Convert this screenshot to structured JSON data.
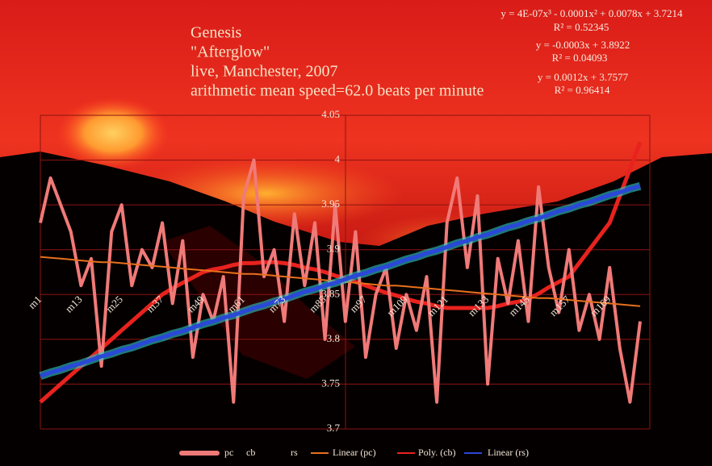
{
  "chart_data": {
    "type": "line",
    "title": [
      "Genesis",
      "\"Afterglow\"",
      "live, Manchester, 2007",
      "arithmetic mean speed=62.0 beats per minute"
    ],
    "categories": [
      "m1",
      null,
      null,
      null,
      "m13",
      null,
      null,
      null,
      "m25",
      null,
      null,
      null,
      "m37",
      null,
      null,
      null,
      "m49",
      null,
      null,
      null,
      "m61",
      null,
      null,
      null,
      "m73",
      null,
      null,
      null,
      "m85",
      null,
      null,
      null,
      "m97",
      null,
      null,
      null,
      "m109",
      null,
      null,
      null,
      "m121",
      null,
      null,
      null,
      "m133",
      null,
      null,
      null,
      "m145",
      null,
      null,
      null,
      "m157",
      null,
      null,
      null,
      "m169",
      null,
      null,
      null
    ],
    "series": [
      {
        "name": "pc",
        "color": "#f07a78",
        "values": [
          3.93,
          3.98,
          3.95,
          3.92,
          3.86,
          3.89,
          3.77,
          3.92,
          3.95,
          3.86,
          3.9,
          3.88,
          3.93,
          3.84,
          3.91,
          3.78,
          3.85,
          3.82,
          3.87,
          3.73,
          3.96,
          4.0,
          3.87,
          3.9,
          3.82,
          3.94,
          3.86,
          3.93,
          3.8,
          3.95,
          3.82,
          3.92,
          3.78,
          3.85,
          3.88,
          3.79,
          3.85,
          3.81,
          3.87,
          3.73,
          3.93,
          3.98,
          3.88,
          3.96,
          3.75,
          3.89,
          3.84,
          3.91,
          3.82,
          3.97,
          3.88,
          3.83,
          3.9,
          3.81,
          3.85,
          3.8,
          3.88,
          3.79,
          3.73,
          3.82
        ]
      },
      {
        "name": "cb"
      },
      {
        "name": "rs"
      }
    ],
    "trendlines": [
      {
        "name": "Linear (pc)",
        "color": "#e8701c",
        "equation": "y = -0.0003x + 3.8922",
        "r_squared": "R² = 0.04093",
        "values": [
          3.892,
          3.891,
          3.89,
          3.889,
          3.888,
          3.887,
          3.886,
          3.886,
          3.885,
          3.884,
          3.883,
          3.882,
          3.881,
          3.88,
          3.879,
          3.878,
          3.877,
          3.876,
          3.875,
          3.874,
          3.873,
          3.873,
          3.872,
          3.871,
          3.87,
          3.869,
          3.868,
          3.867,
          3.866,
          3.865,
          3.864,
          3.863,
          3.862,
          3.861,
          3.86,
          3.86,
          3.859,
          3.858,
          3.857,
          3.856,
          3.855,
          3.854,
          3.853,
          3.852,
          3.851,
          3.85,
          3.849,
          3.848,
          3.847,
          3.846,
          3.846,
          3.845,
          3.844,
          3.843,
          3.842,
          3.841,
          3.84,
          3.839,
          3.838,
          3.837
        ]
      },
      {
        "name": "Poly. (cb)",
        "color": "#e8221e",
        "equation": "y = 4E-07x³ - 0.0001x² + 0.0078x + 3.7214",
        "r_squared": "R² = 0.52345",
        "values": [
          3.73,
          3.74,
          3.75,
          3.76,
          3.77,
          3.78,
          3.79,
          3.8,
          3.81,
          3.82,
          3.83,
          3.84,
          3.85,
          3.857,
          3.863,
          3.869,
          3.875,
          3.878,
          3.88,
          3.883,
          3.885,
          3.885,
          3.886,
          3.886,
          3.885,
          3.883,
          3.88,
          3.878,
          3.875,
          3.871,
          3.868,
          3.864,
          3.86,
          3.856,
          3.852,
          3.849,
          3.845,
          3.842,
          3.84,
          3.837,
          3.835,
          3.835,
          3.835,
          3.835,
          3.835,
          3.837,
          3.84,
          3.842,
          3.845,
          3.851,
          3.858,
          3.864,
          3.87,
          3.885,
          3.9,
          3.915,
          3.93,
          3.96,
          3.99,
          4.02
        ]
      },
      {
        "name": "Linear (rs)",
        "color": "#2a48d8",
        "equation": "y = 0.0012x + 3.7577",
        "r_squared": "R² = 0.96414",
        "values": [
          3.759,
          3.763,
          3.766,
          3.77,
          3.773,
          3.777,
          3.781,
          3.784,
          3.788,
          3.791,
          3.795,
          3.799,
          3.802,
          3.806,
          3.809,
          3.813,
          3.817,
          3.82,
          3.824,
          3.827,
          3.831,
          3.835,
          3.838,
          3.842,
          3.845,
          3.849,
          3.853,
          3.856,
          3.86,
          3.863,
          3.867,
          3.871,
          3.874,
          3.878,
          3.881,
          3.885,
          3.889,
          3.892,
          3.896,
          3.899,
          3.903,
          3.907,
          3.91,
          3.914,
          3.917,
          3.921,
          3.925,
          3.928,
          3.932,
          3.935,
          3.939,
          3.943,
          3.946,
          3.95,
          3.953,
          3.957,
          3.961,
          3.964,
          3.968,
          3.971
        ]
      }
    ],
    "ylim": [
      3.7,
      4.05
    ],
    "yticks": [
      3.7,
      3.75,
      3.8,
      3.85,
      3.9,
      3.95,
      4,
      4.05
    ],
    "grid": true
  }
}
